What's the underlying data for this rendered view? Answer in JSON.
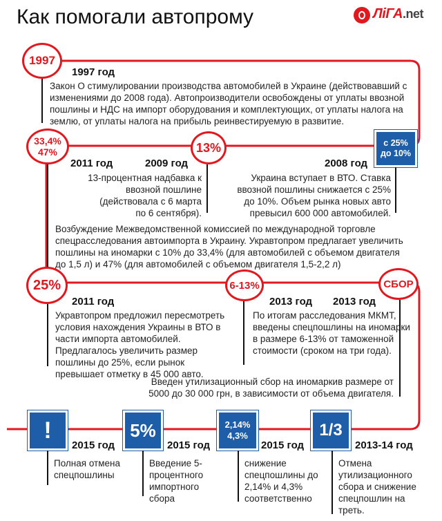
{
  "title": "Как помогали автопрому",
  "logo": {
    "main": "ЛiГА",
    "suffix": ".net"
  },
  "colors": {
    "accent": "#e3171e",
    "square": "#1e5ea8"
  },
  "row1": {
    "badge": "1997",
    "year": "1997 год",
    "text": "Закон О стимулировании производства автомобилей в Украине (действовавший с изменениями до 2008 года). Автопроизводители освобождены от уплаты ввозной пошлины и НДС на импорт оборудования и комплектующих, от уплаты налога на землю, от уплаты налога на прибыль реинвестируемую в развитие."
  },
  "row2": {
    "left_badge": "33,4%\n47%",
    "left_year": "2011 год",
    "mid_badge": "13%",
    "mid_year": "2009 год",
    "mid_text": "13-процентная надбавка к ввозной пошлине (действовала с 6 марта по 6 сентября).",
    "right_badge": "с 25%\nдо 10%",
    "right_year": "2008 год",
    "right_text": "Украина вступает в ВТО. Ставка ввозной пошлины снижается с 25% до 10%. Объем рынка новых авто превысил 600 000 автомобилей.",
    "left_text": "Возбуждение Межведомственной комиссией по международной торговле спецрасследования автоимпорта в Украину.  Укравтопром предлагает увеличить пошлины на иномарки с 10% до 33,4% (для автомобилей с объемом двигателя до 1,5 л) и 47% (для автомобилей с объемом двигателя 1,5-2,2 л)"
  },
  "row3": {
    "left_badge": "25%",
    "left_year": "2011 год",
    "left_text": "Укравтопром предложил пересмотреть условия нахождения Украины в ВТО в части импорта автомобилей. Предлагалось увеличить размер пошлины до 25%, если рынок превышает отметку в 45 000 авто.",
    "mid_badge": "6-13%",
    "mid_year": "2013 год",
    "mid_text": "По итогам расследования МКМТ, введены спецпошлины на иномарки в размере 6-13% от таможенной стоимости (сроком на три года).",
    "right_badge": "СБОР",
    "right_year": "2013 год",
    "right_text": "Введен утилизационный сбор на иномаркив размере от 5000 до 30 000 грн, в зависимости от объема двигателя."
  },
  "row4": [
    {
      "badge": "!",
      "year": "2015 год",
      "text": "Полная отмена спецпошлины"
    },
    {
      "badge": "5%",
      "year": "2015 год",
      "text": "Введение 5-процентного импортного сбора"
    },
    {
      "badge": "2,14%\n4,3%",
      "year": "2015 год",
      "text": "снижение спецпошлины до 2,14% и 4,3% соответственно"
    },
    {
      "badge": "1/3",
      "year": "2013-14 год",
      "text": "Отмена утилизационного сбора и снижение спецпошлин на треть."
    }
  ]
}
